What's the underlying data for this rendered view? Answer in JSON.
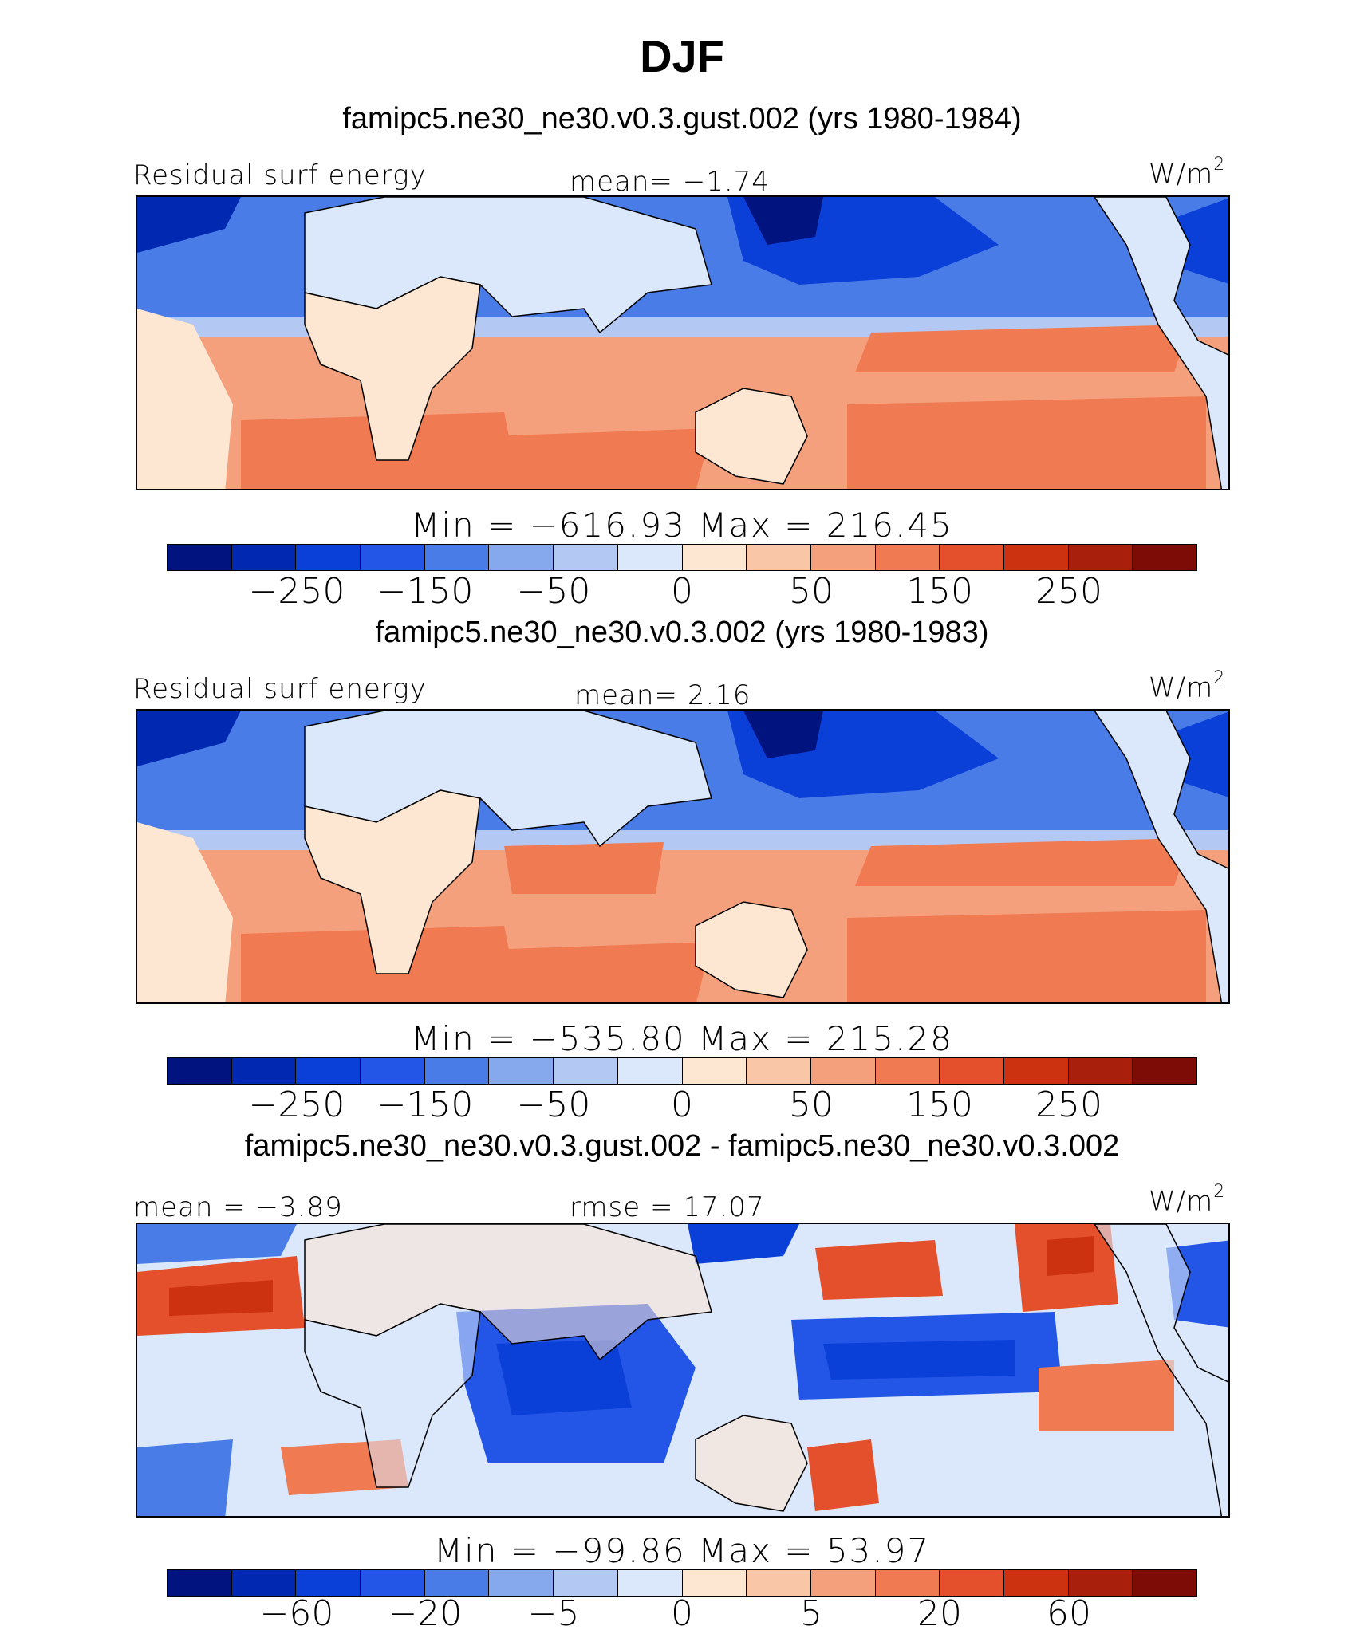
{
  "title": "DJF",
  "panels": [
    {
      "subtitle": "famipc5.ne30_ne30.v0.3.gust.002 (yrs 1980-1984)",
      "left_label": "Residual surf energy",
      "center_label": "mean=   −1.74",
      "units": "W/m",
      "units_sup": "2",
      "minmax": "Min  =  −616.93  Max  =  216.45",
      "colorbar_ticks": [
        "−250",
        "−150",
        "−50",
        "0",
        "50",
        "150",
        "250"
      ]
    },
    {
      "subtitle": "famipc5.ne30_ne30.v0.3.002 (yrs 1980-1983)",
      "left_label": "Residual surf energy",
      "center_label": "mean=    2.16",
      "units": "W/m",
      "units_sup": "2",
      "minmax": "Min  =  −535.80  Max  =  215.28",
      "colorbar_ticks": [
        "−250",
        "−150",
        "−50",
        "0",
        "50",
        "150",
        "250"
      ]
    },
    {
      "subtitle": "famipc5.ne30_ne30.v0.3.gust.002 - famipc5.ne30_ne30.v0.3.002",
      "left_label": "mean  =   −3.89",
      "center_label": "rmse  =   17.07",
      "units": "W/m",
      "units_sup": "2",
      "minmax": "Min  =  −99.86  Max  =    53.97",
      "colorbar_ticks": [
        "−60",
        "−20",
        "−5",
        "0",
        "5",
        "20",
        "60"
      ]
    }
  ],
  "colors": {
    "palette": [
      "#00137f",
      "#0028b0",
      "#0a3fd8",
      "#2355e6",
      "#4a7ce8",
      "#86a9ee",
      "#b3c9f4",
      "#dbe7fa",
      "#fde6d2",
      "#f9c6a7",
      "#f5a07c",
      "#f07a52",
      "#e4502b",
      "#cc3210",
      "#a8200c",
      "#7d0b06"
    ],
    "land": "#dbe7fa"
  },
  "chart_data": [
    {
      "type": "heatmap",
      "title": "famipc5.ne30_ne30.v0.3.gust.002 (yrs 1980-1984)",
      "variable": "Residual surf energy",
      "units": "W/m2",
      "mean": -1.74,
      "min": -616.93,
      "max": 216.45,
      "colorbar_levels": [
        -300,
        -250,
        -200,
        -150,
        -100,
        -50,
        -25,
        0,
        25,
        50,
        100,
        150,
        200,
        250,
        300
      ]
    },
    {
      "type": "heatmap",
      "title": "famipc5.ne30_ne30.v0.3.002 (yrs 1980-1983)",
      "variable": "Residual surf energy",
      "units": "W/m2",
      "mean": 2.16,
      "min": -535.8,
      "max": 215.28,
      "colorbar_levels": [
        -300,
        -250,
        -200,
        -150,
        -100,
        -50,
        -25,
        0,
        25,
        50,
        100,
        150,
        200,
        250,
        300
      ]
    },
    {
      "type": "heatmap",
      "title": "famipc5.ne30_ne30.v0.3.gust.002 - famipc5.ne30_ne30.v0.3.002",
      "units": "W/m2",
      "mean": -3.89,
      "rmse": 17.07,
      "min": -99.86,
      "max": 53.97,
      "colorbar_levels": [
        -80,
        -60,
        -40,
        -20,
        -10,
        -5,
        -2,
        0,
        2,
        5,
        10,
        20,
        40,
        60,
        80
      ]
    }
  ]
}
